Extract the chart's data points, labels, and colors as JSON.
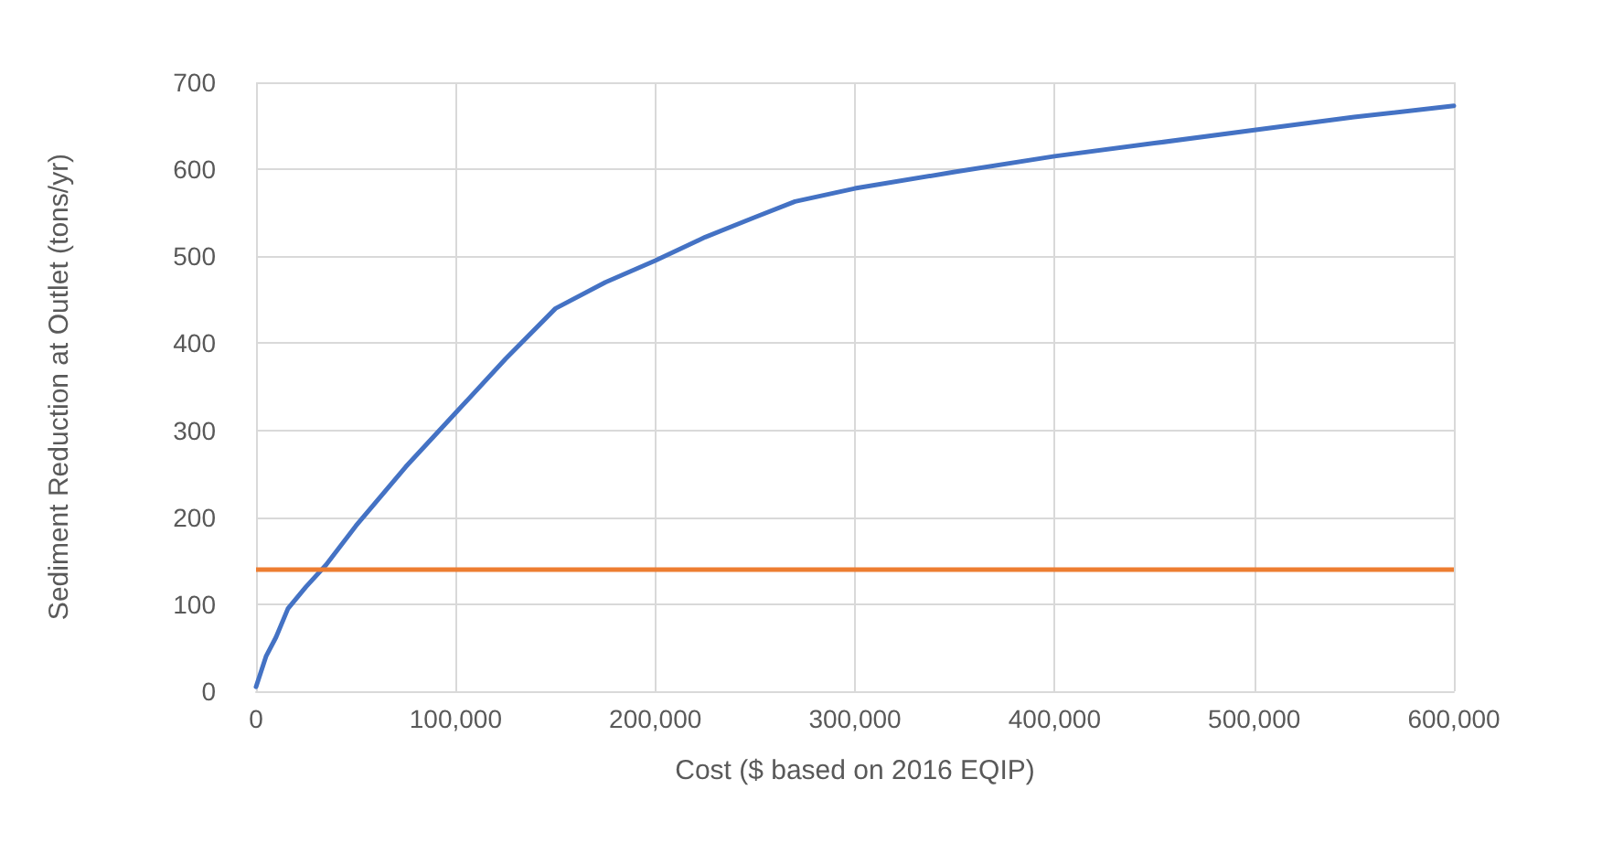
{
  "chart_data": {
    "type": "line",
    "xlabel": "Cost ($ based on 2016 EQIP)",
    "ylabel": "Sediment Reduction at Outlet (tons/yr)",
    "series": [
      {
        "color": "#4472c4",
        "x": [
          0,
          5000,
          10000,
          16000,
          25000,
          35000,
          50000,
          75000,
          100000,
          125000,
          150000,
          175000,
          200000,
          225000,
          250000,
          270000,
          300000,
          350000,
          400000,
          450000,
          500000,
          550000,
          600000
        ],
        "values": [
          5,
          40,
          62,
          95,
          120,
          145,
          190,
          258,
          320,
          382,
          440,
          470,
          495,
          522,
          545,
          563,
          578,
          597,
          615,
          630,
          645,
          660,
          673
        ]
      }
    ],
    "ref_lines": [
      {
        "axis": "y",
        "value": 140,
        "color": "#ed7d31"
      }
    ],
    "xlim": [
      0,
      600000
    ],
    "xticks": [
      0,
      {
        "value": 100000,
        "label": "100,000"
      },
      {
        "value": 200000,
        "label": "200,000"
      },
      {
        "value": 300000,
        "label": "300,000"
      },
      {
        "value": 400000,
        "label": "400,000"
      },
      {
        "value": 500000,
        "label": "500,000"
      },
      {
        "value": 600000,
        "label": "600,000"
      }
    ],
    "ylim": [
      0,
      700
    ],
    "yticks": [
      0,
      100,
      200,
      300,
      400,
      500,
      600,
      700
    ],
    "grid": true,
    "marker": "none",
    "line_style": "solid"
  }
}
